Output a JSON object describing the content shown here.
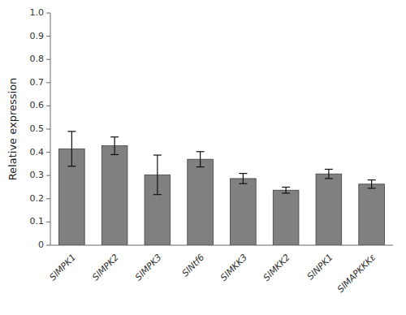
{
  "chart_data": {
    "type": "bar",
    "ylabel": "Relative expression",
    "categories": [
      "SlMPK1",
      "SlMPK2",
      "SlMPK3",
      "SlNtf6",
      "SlMKK3",
      "SlMKK2",
      "SlNPK1",
      "SlMAPKKKε"
    ],
    "values": [
      0.415,
      0.428,
      0.303,
      0.37,
      0.287,
      0.237,
      0.307,
      0.263
    ],
    "errors": [
      0.075,
      0.038,
      0.085,
      0.033,
      0.022,
      0.013,
      0.02,
      0.018
    ],
    "color": "#808080",
    "ylim": [
      0,
      1.0
    ],
    "yticks": [
      0,
      0.1,
      0.2,
      0.3,
      0.4,
      0.5,
      0.6,
      0.7,
      0.8,
      0.9,
      {
        "value": 1.0,
        "label": "1.0"
      }
    ],
    "grid": false
  }
}
